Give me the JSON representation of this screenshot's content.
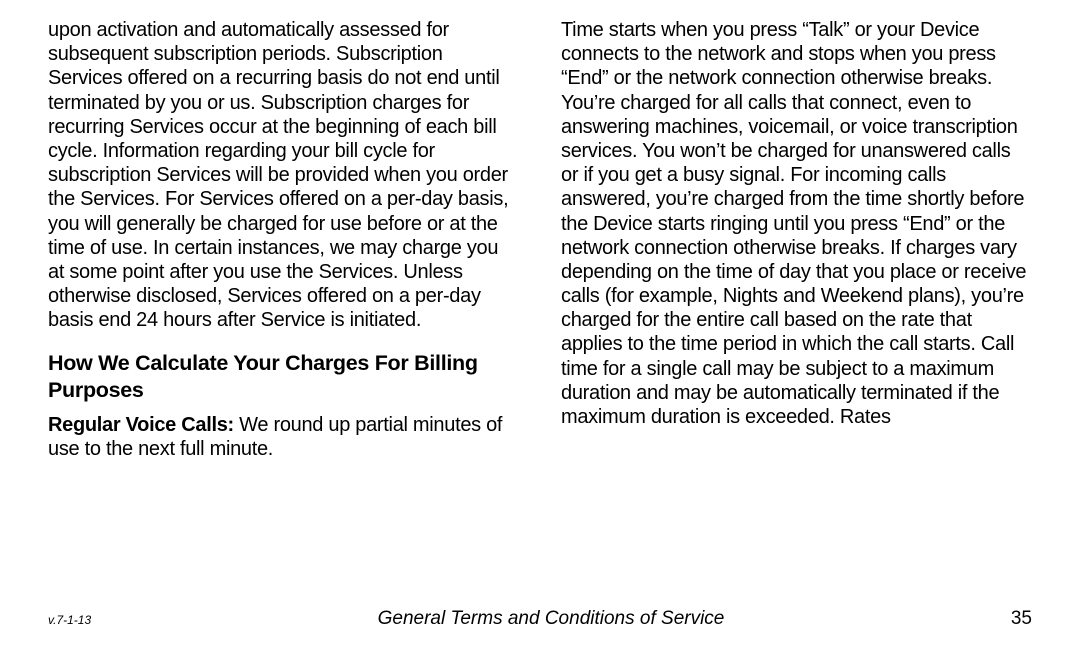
{
  "col1": {
    "para1": "upon activation and automatically assessed for subsequent subscription periods. Subscription Services offered on a recurring basis do not end until terminated by you or us. Subscription charges for recurring Services occur at the beginning of each bill cycle. Information regarding your bill cycle for subscription Services will be provided when you order the Services. For Services offered on a per-day basis, you will generally be charged for use before or at the time of use. In certain instances, we may charge you at some point after you use the Services. Unless otherwise disclosed, Services offered on a per-day basis end 24 hours after Service is initiated.",
    "heading": "How We Calculate Your Charges For Billing Purposes",
    "runin": "Regular Voice Calls:",
    "para2": " We round up partial minutes of use to the next full minute."
  },
  "col2": {
    "para1": "Time starts when you press “Talk” or your Device connects to the network and stops when you press “End” or the network connection otherwise breaks. You’re charged for all calls that connect, even to answering machines, voicemail, or voice transcription services. You won’t be charged for unanswered calls or if you get a busy signal. For incoming calls answered, you’re charged from the time shortly before the Device starts ringing until you press “End” or the network connection otherwise breaks. If charges vary depending on the time of day that you place or receive calls (for example, Nights and Weekend plans), you’re charged for the entire call based on the rate that applies to the time period in which the call starts. Call time for a single call may be subject to a maximum duration and may be automatically terminated if the maximum duration is exceeded. Rates"
  },
  "footer": {
    "version": "v.7-1-13",
    "title": "General Terms and Conditions of Service",
    "page": "35"
  }
}
